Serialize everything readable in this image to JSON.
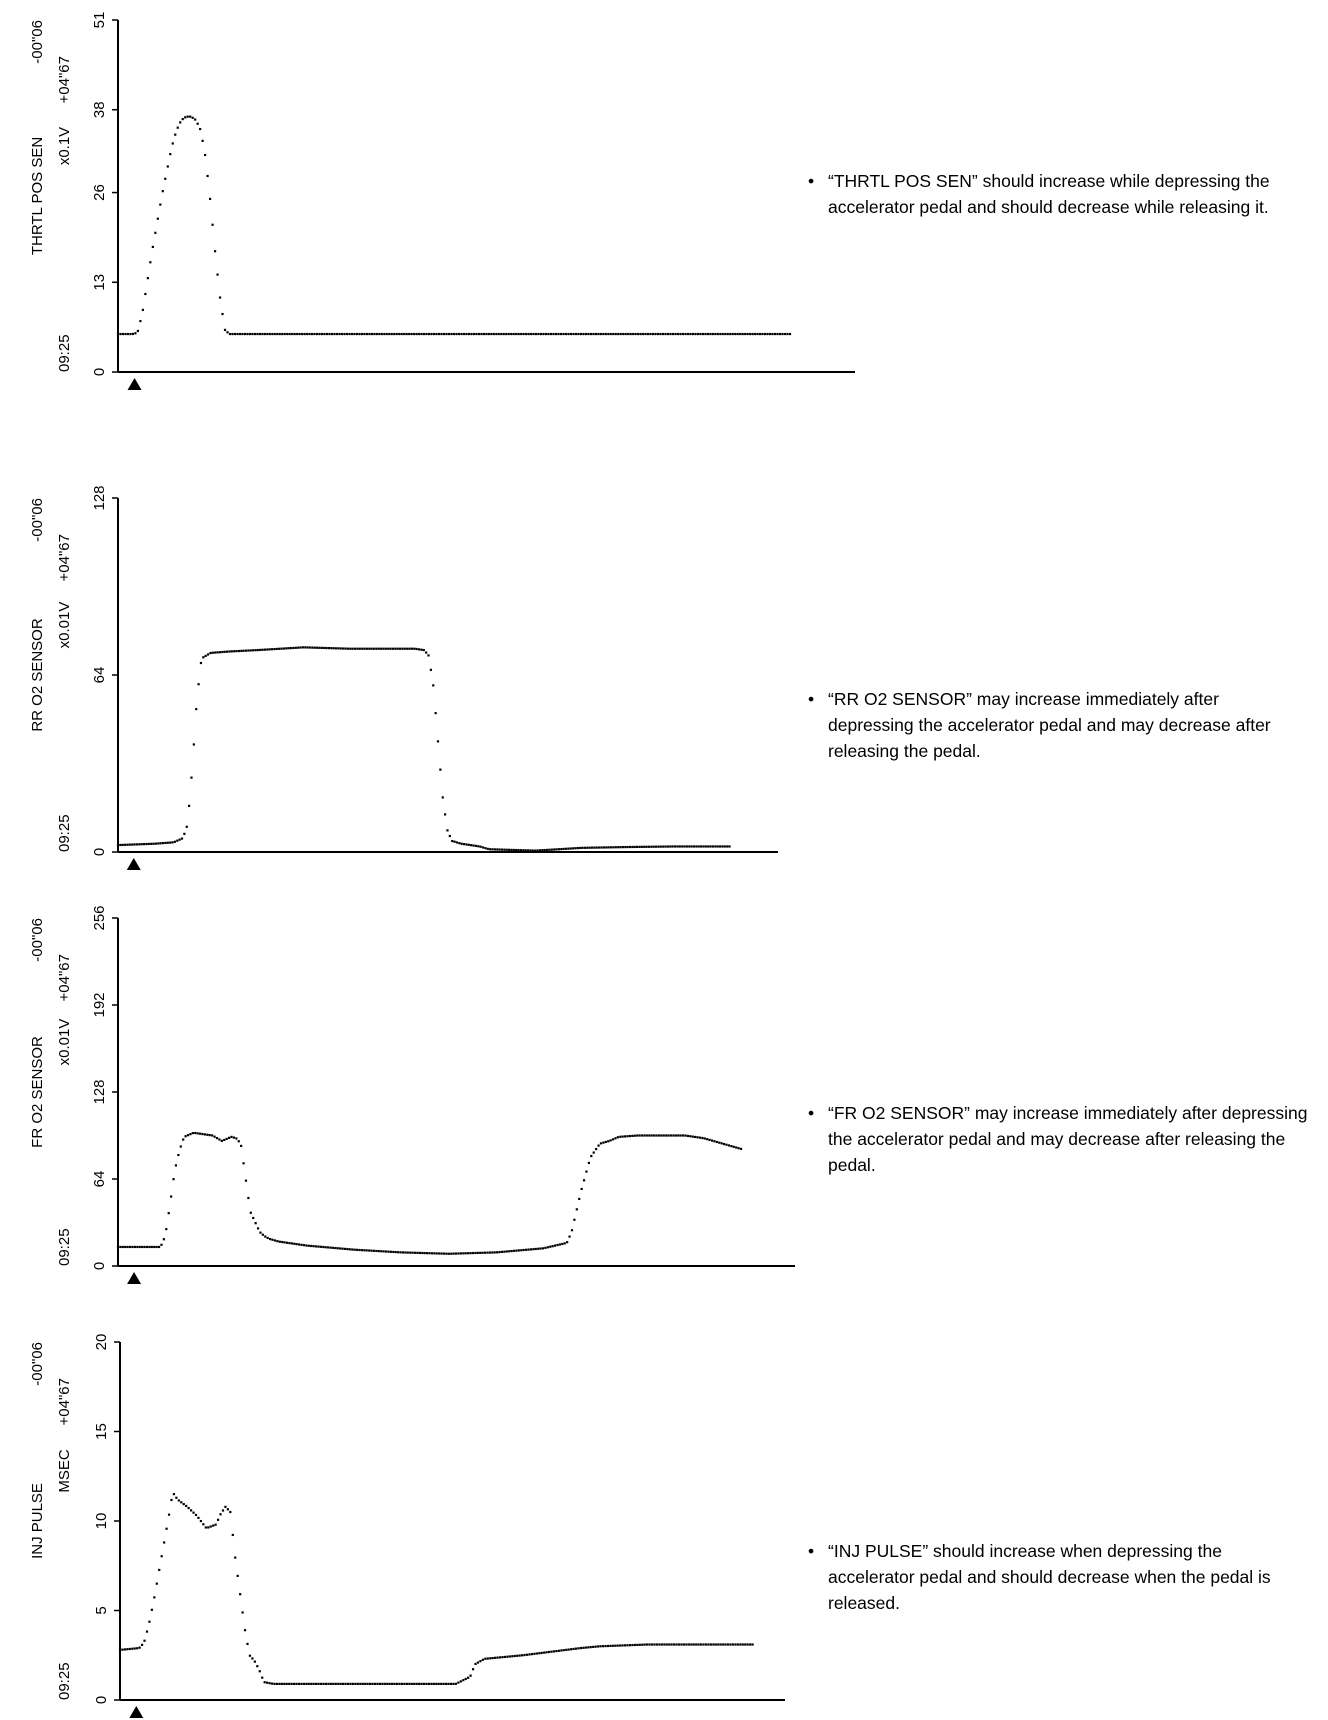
{
  "chart_data": [
    {
      "type": "scatter",
      "parameter": "THRTL POS SEN",
      "unit": "x0.1V",
      "time": "09:25",
      "offset_top": "-00\"06",
      "offset_bottom": "+04\"67",
      "yticks": [
        0,
        13,
        26,
        38,
        51
      ],
      "ylim": [
        0,
        51
      ],
      "xlim": [
        0,
        6.9
      ],
      "trigger_x": 0.17,
      "note": "“THRTL POS SEN” should increase while depressing the accelerator pedal and should decrease while releasing it.",
      "series": [
        {
          "x": [
            0,
            0.1,
            0.15,
            0.2,
            0.25,
            0.3,
            0.35,
            0.4,
            0.45,
            0.5,
            0.55,
            0.6,
            0.65,
            0.7,
            0.75,
            0.8,
            0.85,
            0.9,
            0.95,
            1.0,
            1.05,
            1.1,
            1.15,
            1.2,
            1.25,
            1.3,
            2.0,
            3.0,
            4.0,
            5.0,
            6.0,
            6.9
          ],
          "y": [
            5.5,
            5.5,
            5.5,
            5.7,
            8.5,
            13,
            17.5,
            21.5,
            25.5,
            29,
            32.5,
            35,
            36.5,
            37,
            37,
            36.5,
            35,
            31,
            24.5,
            17,
            10.5,
            6,
            5.5,
            5.5,
            5.5,
            5.5,
            5.5,
            5.5,
            5.5,
            5.5,
            5.5,
            5.5
          ]
        }
      ]
    },
    {
      "type": "scatter",
      "parameter": "RR O2 SENSOR",
      "unit": "x0.01V",
      "time": "09:25",
      "offset_top": "-00\"06",
      "offset_bottom": "+04\"67",
      "yticks": [
        0,
        64,
        128
      ],
      "ylim": [
        0,
        128
      ],
      "xlim": [
        0,
        6.9
      ],
      "trigger_x": 0.17,
      "note": "“RR O2 SENSOR” may increase immediately after depressing the accelerator pedal and may decrease after releasing the pedal.",
      "series": [
        {
          "x": [
            0,
            0.4,
            0.6,
            0.7,
            0.75,
            0.8,
            0.85,
            0.9,
            1.0,
            1.2,
            1.5,
            2.0,
            2.5,
            3.0,
            3.2,
            3.3,
            3.35,
            3.4,
            3.45,
            3.5,
            3.55,
            3.6,
            3.7,
            3.9,
            4.0,
            4.5,
            5.0,
            5.5,
            6.0,
            6.5,
            6.6
          ],
          "y": [
            2.5,
            3,
            3.5,
            5,
            10,
            30,
            55,
            70,
            72,
            72.5,
            73,
            74,
            73.5,
            73.5,
            73.5,
            73,
            71,
            60,
            40,
            20,
            8,
            4,
            3,
            2,
            1,
            0.5,
            1.5,
            1.8,
            2,
            2,
            2
          ]
        }
      ]
    },
    {
      "type": "scatter",
      "parameter": "FR O2 SENSOR",
      "unit": "x0.01V",
      "time": "09:25",
      "offset_top": "-00\"06",
      "offset_bottom": "+04\"67",
      "yticks": [
        0,
        64,
        128,
        192,
        256
      ],
      "ylim": [
        0,
        256
      ],
      "xlim": [
        0,
        6.9
      ],
      "trigger_x": 0.17,
      "note": "“FR O2 SENSOR” may increase immediately after depressing the accelerator pedal and may decrease after releasing the pedal.",
      "series": [
        {
          "x": [
            0,
            0.45,
            0.5,
            0.55,
            0.6,
            0.65,
            0.7,
            0.8,
            0.9,
            1.0,
            1.1,
            1.2,
            1.25,
            1.3,
            1.35,
            1.4,
            1.5,
            1.55,
            1.6,
            1.7,
            2.0,
            2.5,
            3.0,
            3.5,
            4.0,
            4.5,
            4.75,
            4.8,
            4.9,
            5.0,
            5.1,
            5.2,
            5.3,
            5.5,
            6.0,
            6.2,
            6.4,
            6.6,
            6.6
          ],
          "y": [
            14,
            14,
            22,
            45,
            70,
            85,
            95,
            98,
            97,
            96,
            92,
            95,
            94,
            90,
            65,
            40,
            25,
            22,
            20,
            18,
            15,
            12,
            10,
            9,
            10,
            13,
            17,
            25,
            55,
            80,
            90,
            92,
            95,
            96,
            96,
            94,
            90,
            86,
            86
          ]
        }
      ]
    },
    {
      "type": "scatter",
      "parameter": "INJ PULSE",
      "unit": "MSEC",
      "time": "09:25",
      "offset_top": "-00\"06",
      "offset_bottom": "+04\"67",
      "yticks": [
        0,
        5,
        10,
        15,
        20
      ],
      "ylim": [
        0,
        20
      ],
      "xlim": [
        0,
        6.9
      ],
      "trigger_x": 0.17,
      "note": "“INJ PULSE” should increase when depressing the accelerator pedal and should decrease when the pedal is released.",
      "series": [
        {
          "x": [
            0,
            0.2,
            0.25,
            0.3,
            0.35,
            0.4,
            0.45,
            0.5,
            0.55,
            0.6,
            0.7,
            0.8,
            0.9,
            1.0,
            1.05,
            1.1,
            1.15,
            1.2,
            1.25,
            1.3,
            1.35,
            1.4,
            1.45,
            1.5,
            1.6,
            1.8,
            2.0,
            2.5,
            3.0,
            3.5,
            3.65,
            3.7,
            3.8,
            4.0,
            4.2,
            4.5,
            4.8,
            5.0,
            5.5,
            6.0,
            6.5,
            6.6
          ],
          "y": [
            2.8,
            2.9,
            3.2,
            4.2,
            5.5,
            7,
            8.5,
            10,
            11.6,
            11.2,
            10.8,
            10.3,
            9.6,
            9.8,
            10.4,
            10.8,
            10.5,
            8,
            6,
            4,
            2.5,
            2.2,
            1.7,
            1,
            0.9,
            0.9,
            0.9,
            0.9,
            0.9,
            0.9,
            1.3,
            2,
            2.3,
            2.4,
            2.5,
            2.7,
            2.9,
            3,
            3.1,
            3.1,
            3.1,
            3.1
          ]
        }
      ]
    }
  ]
}
